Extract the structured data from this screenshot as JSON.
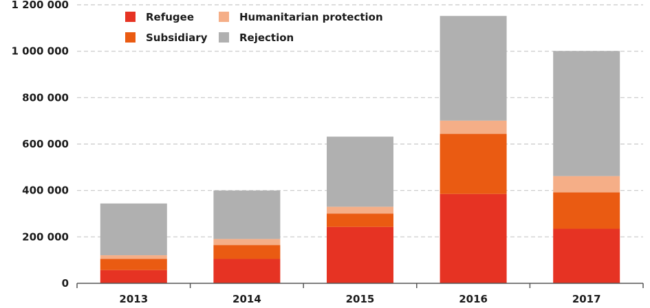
{
  "chart_data": {
    "type": "bar",
    "stacked": true,
    "categories": [
      "2013",
      "2014",
      "2015",
      "2016",
      "2017"
    ],
    "series": [
      {
        "name": "Refugee",
        "color": "#e63323",
        "values": [
          57000,
          105000,
          243000,
          385000,
          235000
        ]
      },
      {
        "name": "Subsidiary",
        "color": "#ea5b12",
        "values": [
          48000,
          60000,
          57000,
          259000,
          157000
        ]
      },
      {
        "name": "Humanitarian protection",
        "color": "#f5ae87",
        "values": [
          16000,
          26000,
          30000,
          57000,
          70000
        ]
      },
      {
        "name": "Rejection",
        "color": "#b0b0b0",
        "values": [
          223000,
          209000,
          302000,
          451000,
          539000
        ]
      }
    ],
    "ylim": [
      0,
      1200000
    ],
    "yticks": [
      0,
      200000,
      400000,
      600000,
      800000,
      1000000,
      1200000
    ],
    "ytick_labels": [
      "0",
      "200 000",
      "400 000",
      "600 000",
      "800 000",
      "1 000 000",
      "1 200 000"
    ],
    "grid": "horizontal-dashed",
    "legend_position": "top-left",
    "xlabel": "",
    "ylabel": "",
    "title": ""
  }
}
